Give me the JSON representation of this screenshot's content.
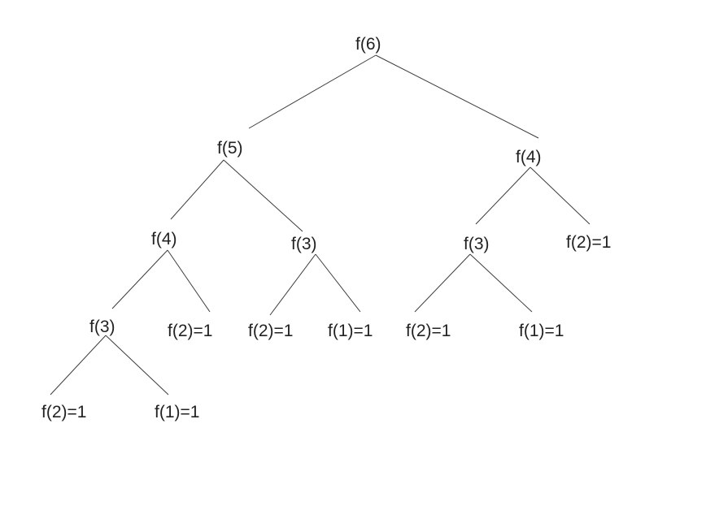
{
  "tree": {
    "nodes": [
      {
        "id": "n1",
        "label": "f(6)"
      },
      {
        "id": "n2",
        "label": "f(5)"
      },
      {
        "id": "n3",
        "label": "f(4)"
      },
      {
        "id": "n4",
        "label": "f(4)"
      },
      {
        "id": "n5",
        "label": "f(3)"
      },
      {
        "id": "n6",
        "label": "f(3)"
      },
      {
        "id": "n7",
        "label": "f(2)=1"
      },
      {
        "id": "n8",
        "label": "f(3)"
      },
      {
        "id": "n9",
        "label": "f(2)=1"
      },
      {
        "id": "n10",
        "label": "f(2)=1"
      },
      {
        "id": "n11",
        "label": "f(1)=1"
      },
      {
        "id": "n12",
        "label": "f(2)=1"
      },
      {
        "id": "n13",
        "label": "f(1)=1"
      },
      {
        "id": "n14",
        "label": "f(2)=1"
      },
      {
        "id": "n15",
        "label": "f(1)=1"
      }
    ],
    "edges": [
      [
        "n1",
        "n2"
      ],
      [
        "n1",
        "n3"
      ],
      [
        "n2",
        "n4"
      ],
      [
        "n2",
        "n5"
      ],
      [
        "n3",
        "n6"
      ],
      [
        "n3",
        "n7"
      ],
      [
        "n4",
        "n8"
      ],
      [
        "n4",
        "n9"
      ],
      [
        "n5",
        "n10"
      ],
      [
        "n5",
        "n11"
      ],
      [
        "n6",
        "n12"
      ],
      [
        "n6",
        "n13"
      ],
      [
        "n8",
        "n14"
      ],
      [
        "n8",
        "n15"
      ]
    ]
  }
}
